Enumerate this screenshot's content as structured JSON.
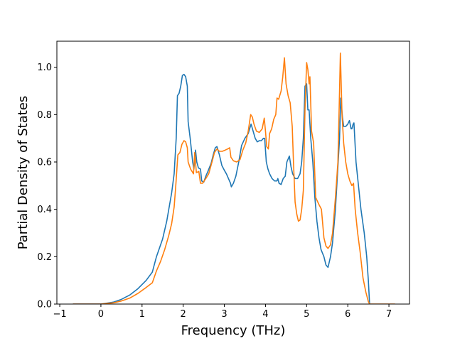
{
  "chart_data": {
    "type": "line",
    "title": "",
    "xlabel": "Frequency (THz)",
    "ylabel": "Partial Density of States",
    "xlim": [
      -1.07,
      7.5
    ],
    "ylim": [
      0.0,
      1.11
    ],
    "xticks": [
      -1,
      0,
      1,
      2,
      3,
      4,
      5,
      6,
      7
    ],
    "yticks": [
      0.0,
      0.2,
      0.4,
      0.6,
      0.8,
      1.0
    ],
    "xtick_labels": [
      "−1",
      "0",
      "1",
      "2",
      "3",
      "4",
      "5",
      "6",
      "7"
    ],
    "ytick_labels": [
      "0.0",
      "0.2",
      "0.4",
      "0.6",
      "0.8",
      "1.0"
    ],
    "grid": false,
    "series": [
      {
        "color": "#1f77b4",
        "points": [
          [
            -0.68,
            0.0
          ],
          [
            0.0,
            0.0
          ],
          [
            0.3,
            0.008
          ],
          [
            0.5,
            0.02
          ],
          [
            0.7,
            0.038
          ],
          [
            0.9,
            0.065
          ],
          [
            1.1,
            0.1
          ],
          [
            1.25,
            0.135
          ],
          [
            1.35,
            0.2
          ],
          [
            1.5,
            0.275
          ],
          [
            1.6,
            0.35
          ],
          [
            1.65,
            0.4
          ],
          [
            1.72,
            0.47
          ],
          [
            1.78,
            0.55
          ],
          [
            1.83,
            0.7
          ],
          [
            1.86,
            0.88
          ],
          [
            1.9,
            0.89
          ],
          [
            1.94,
            0.92
          ],
          [
            1.98,
            0.965
          ],
          [
            2.02,
            0.97
          ],
          [
            2.06,
            0.96
          ],
          [
            2.1,
            0.92
          ],
          [
            2.12,
            0.77
          ],
          [
            2.17,
            0.7
          ],
          [
            2.23,
            0.6
          ],
          [
            2.26,
            0.57
          ],
          [
            2.3,
            0.65
          ],
          [
            2.33,
            0.6
          ],
          [
            2.37,
            0.575
          ],
          [
            2.42,
            0.57
          ],
          [
            2.45,
            0.52
          ],
          [
            2.5,
            0.515
          ],
          [
            2.55,
            0.54
          ],
          [
            2.6,
            0.56
          ],
          [
            2.68,
            0.595
          ],
          [
            2.73,
            0.63
          ],
          [
            2.78,
            0.66
          ],
          [
            2.82,
            0.665
          ],
          [
            2.88,
            0.63
          ],
          [
            2.94,
            0.585
          ],
          [
            3.0,
            0.565
          ],
          [
            3.05,
            0.55
          ],
          [
            3.1,
            0.53
          ],
          [
            3.15,
            0.51
          ],
          [
            3.17,
            0.495
          ],
          [
            3.22,
            0.51
          ],
          [
            3.28,
            0.54
          ],
          [
            3.35,
            0.6
          ],
          [
            3.42,
            0.67
          ],
          [
            3.5,
            0.7
          ],
          [
            3.58,
            0.72
          ],
          [
            3.65,
            0.76
          ],
          [
            3.7,
            0.73
          ],
          [
            3.75,
            0.7
          ],
          [
            3.8,
            0.685
          ],
          [
            3.85,
            0.69
          ],
          [
            3.9,
            0.69
          ],
          [
            3.95,
            0.7
          ],
          [
            3.98,
            0.7
          ],
          [
            4.02,
            0.6
          ],
          [
            4.06,
            0.57
          ],
          [
            4.1,
            0.55
          ],
          [
            4.16,
            0.53
          ],
          [
            4.22,
            0.52
          ],
          [
            4.28,
            0.52
          ],
          [
            4.3,
            0.53
          ],
          [
            4.33,
            0.51
          ],
          [
            4.38,
            0.505
          ],
          [
            4.43,
            0.53
          ],
          [
            4.48,
            0.54
          ],
          [
            4.52,
            0.6
          ],
          [
            4.58,
            0.625
          ],
          [
            4.62,
            0.58
          ],
          [
            4.66,
            0.55
          ],
          [
            4.72,
            0.53
          ],
          [
            4.78,
            0.53
          ],
          [
            4.84,
            0.55
          ],
          [
            4.88,
            0.6
          ],
          [
            4.92,
            0.7
          ],
          [
            4.96,
            0.92
          ],
          [
            5.0,
            0.93
          ],
          [
            5.03,
            0.82
          ],
          [
            5.06,
            0.82
          ],
          [
            5.1,
            0.7
          ],
          [
            5.15,
            0.6
          ],
          [
            5.2,
            0.45
          ],
          [
            5.25,
            0.35
          ],
          [
            5.3,
            0.28
          ],
          [
            5.35,
            0.23
          ],
          [
            5.42,
            0.2
          ],
          [
            5.47,
            0.165
          ],
          [
            5.52,
            0.155
          ],
          [
            5.58,
            0.2
          ],
          [
            5.63,
            0.26
          ],
          [
            5.7,
            0.4
          ],
          [
            5.75,
            0.55
          ],
          [
            5.8,
            0.7
          ],
          [
            5.83,
            0.87
          ],
          [
            5.87,
            0.79
          ],
          [
            5.9,
            0.75
          ],
          [
            5.95,
            0.75
          ],
          [
            6.0,
            0.76
          ],
          [
            6.04,
            0.775
          ],
          [
            6.08,
            0.74
          ],
          [
            6.1,
            0.74
          ],
          [
            6.13,
            0.76
          ],
          [
            6.15,
            0.765
          ],
          [
            6.2,
            0.6
          ],
          [
            6.26,
            0.5
          ],
          [
            6.32,
            0.4
          ],
          [
            6.4,
            0.3
          ],
          [
            6.46,
            0.2
          ],
          [
            6.5,
            0.1
          ],
          [
            6.53,
            0.0
          ]
        ]
      },
      {
        "color": "#ff7f0e",
        "points": [
          [
            -0.68,
            0.0
          ],
          [
            0.0,
            0.0
          ],
          [
            0.3,
            0.005
          ],
          [
            0.5,
            0.013
          ],
          [
            0.7,
            0.025
          ],
          [
            0.9,
            0.045
          ],
          [
            1.1,
            0.07
          ],
          [
            1.25,
            0.09
          ],
          [
            1.35,
            0.14
          ],
          [
            1.45,
            0.18
          ],
          [
            1.55,
            0.23
          ],
          [
            1.65,
            0.29
          ],
          [
            1.72,
            0.34
          ],
          [
            1.78,
            0.41
          ],
          [
            1.82,
            0.5
          ],
          [
            1.87,
            0.63
          ],
          [
            1.92,
            0.64
          ],
          [
            1.97,
            0.675
          ],
          [
            2.02,
            0.69
          ],
          [
            2.06,
            0.685
          ],
          [
            2.1,
            0.66
          ],
          [
            2.12,
            0.6
          ],
          [
            2.18,
            0.57
          ],
          [
            2.25,
            0.55
          ],
          [
            2.28,
            0.64
          ],
          [
            2.32,
            0.555
          ],
          [
            2.38,
            0.56
          ],
          [
            2.42,
            0.51
          ],
          [
            2.47,
            0.51
          ],
          [
            2.55,
            0.53
          ],
          [
            2.62,
            0.55
          ],
          [
            2.7,
            0.6
          ],
          [
            2.76,
            0.64
          ],
          [
            2.82,
            0.655
          ],
          [
            2.88,
            0.645
          ],
          [
            2.95,
            0.645
          ],
          [
            3.02,
            0.65
          ],
          [
            3.08,
            0.655
          ],
          [
            3.13,
            0.66
          ],
          [
            3.16,
            0.62
          ],
          [
            3.22,
            0.605
          ],
          [
            3.3,
            0.6
          ],
          [
            3.38,
            0.61
          ],
          [
            3.45,
            0.65
          ],
          [
            3.52,
            0.68
          ],
          [
            3.58,
            0.73
          ],
          [
            3.64,
            0.8
          ],
          [
            3.68,
            0.79
          ],
          [
            3.72,
            0.76
          ],
          [
            3.78,
            0.73
          ],
          [
            3.85,
            0.725
          ],
          [
            3.92,
            0.74
          ],
          [
            3.97,
            0.785
          ],
          [
            4.0,
            0.73
          ],
          [
            4.03,
            0.665
          ],
          [
            4.07,
            0.655
          ],
          [
            4.1,
            0.72
          ],
          [
            4.15,
            0.74
          ],
          [
            4.2,
            0.78
          ],
          [
            4.25,
            0.8
          ],
          [
            4.28,
            0.87
          ],
          [
            4.32,
            0.865
          ],
          [
            4.38,
            0.9
          ],
          [
            4.42,
            0.96
          ],
          [
            4.46,
            1.04
          ],
          [
            4.5,
            0.93
          ],
          [
            4.55,
            0.88
          ],
          [
            4.6,
            0.85
          ],
          [
            4.65,
            0.75
          ],
          [
            4.68,
            0.6
          ],
          [
            4.72,
            0.43
          ],
          [
            4.76,
            0.38
          ],
          [
            4.8,
            0.35
          ],
          [
            4.84,
            0.355
          ],
          [
            4.88,
            0.4
          ],
          [
            4.92,
            0.48
          ],
          [
            4.96,
            0.82
          ],
          [
            5.0,
            1.02
          ],
          [
            5.03,
            0.99
          ],
          [
            5.06,
            0.93
          ],
          [
            5.08,
            0.96
          ],
          [
            5.12,
            0.73
          ],
          [
            5.17,
            0.68
          ],
          [
            5.22,
            0.45
          ],
          [
            5.3,
            0.42
          ],
          [
            5.36,
            0.4
          ],
          [
            5.42,
            0.28
          ],
          [
            5.47,
            0.245
          ],
          [
            5.52,
            0.235
          ],
          [
            5.58,
            0.25
          ],
          [
            5.63,
            0.3
          ],
          [
            5.7,
            0.45
          ],
          [
            5.76,
            0.6
          ],
          [
            5.8,
            0.9
          ],
          [
            5.82,
            1.06
          ],
          [
            5.86,
            0.8
          ],
          [
            5.9,
            0.68
          ],
          [
            5.95,
            0.6
          ],
          [
            6.0,
            0.55
          ],
          [
            6.05,
            0.52
          ],
          [
            6.1,
            0.5
          ],
          [
            6.14,
            0.51
          ],
          [
            6.18,
            0.4
          ],
          [
            6.24,
            0.3
          ],
          [
            6.3,
            0.22
          ],
          [
            6.37,
            0.11
          ],
          [
            6.44,
            0.05
          ],
          [
            6.5,
            0.01
          ],
          [
            6.53,
            0.0
          ],
          [
            7.15,
            0.0
          ]
        ]
      }
    ]
  }
}
